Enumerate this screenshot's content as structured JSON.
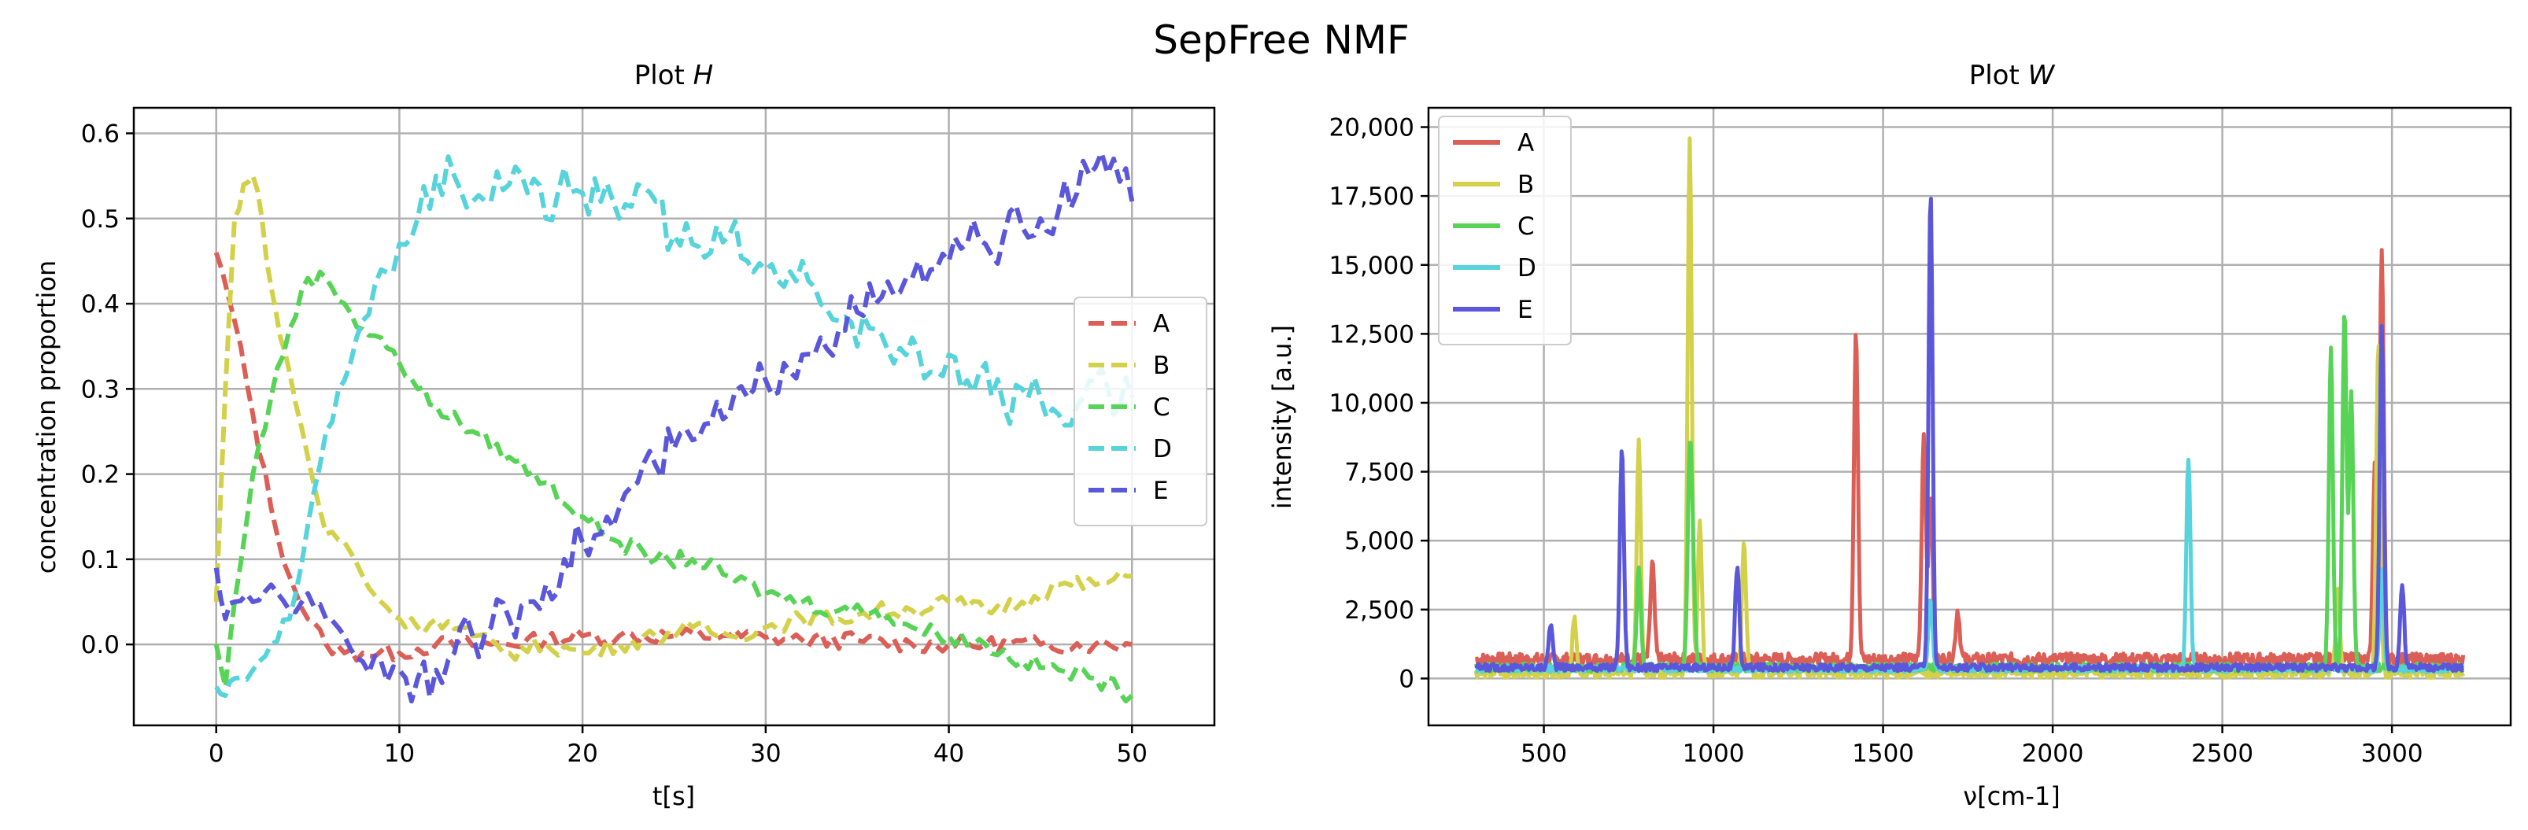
{
  "figure": {
    "suptitle": "SepFree NMF"
  },
  "chart_data": [
    {
      "type": "line",
      "title_main": "Plot ",
      "title_var": "H",
      "xlabel": "t[s]",
      "ylabel": "concentration proportion",
      "xlim": [
        -4.5,
        54.5
      ],
      "ylim": [
        -0.095,
        0.63
      ],
      "xticks": [
        0,
        10,
        20,
        30,
        40,
        50
      ],
      "yticks": [
        -0.1,
        0.0,
        0.1,
        0.2,
        0.3,
        0.4,
        0.5,
        0.6
      ],
      "xtick_labels": [
        "0",
        "10",
        "20",
        "30",
        "40",
        "50"
      ],
      "ytick_labels": [
        "0.0",
        "0.1",
        "0.2",
        "0.3",
        "0.4",
        "0.5",
        "0.6"
      ],
      "grid": true,
      "line_style": "dashed",
      "legend": "center-right",
      "series": [
        {
          "name": "A",
          "color": "#db5f57",
          "x": [
            0,
            1,
            2,
            3,
            4,
            5,
            6,
            7,
            8,
            10,
            12,
            15,
            18,
            20,
            22,
            25,
            28,
            30,
            32,
            35,
            38,
            40,
            42,
            45,
            48,
            50
          ],
          "y": [
            0.46,
            0.38,
            0.27,
            0.16,
            0.08,
            0.03,
            0.0,
            -0.01,
            -0.01,
            -0.01,
            0.0,
            0.0,
            0.005,
            0.01,
            0.01,
            0.01,
            0.01,
            0.008,
            0.005,
            0.005,
            0.0,
            0.0,
            0.0,
            0.0,
            0.0,
            0.0
          ]
        },
        {
          "name": "B",
          "color": "#d3d14a",
          "x": [
            0,
            0.5,
            1,
            1.5,
            2,
            2.5,
            3,
            3.5,
            4,
            5,
            6,
            7,
            8,
            9,
            10,
            11,
            12,
            14,
            16,
            18,
            20,
            22,
            24,
            26,
            28,
            30,
            32,
            34,
            36,
            38,
            40,
            42,
            44,
            46,
            48,
            50
          ],
          "y": [
            0.05,
            0.3,
            0.5,
            0.54,
            0.55,
            0.5,
            0.42,
            0.36,
            0.32,
            0.22,
            0.13,
            0.12,
            0.08,
            0.05,
            0.03,
            0.02,
            0.03,
            0.01,
            -0.01,
            0.0,
            -0.01,
            0.0,
            0.01,
            0.02,
            0.01,
            0.02,
            0.03,
            0.03,
            0.04,
            0.04,
            0.05,
            0.04,
            0.05,
            0.07,
            0.07,
            0.08
          ]
        },
        {
          "name": "C",
          "color": "#57d356",
          "x": [
            0,
            0.5,
            1,
            2,
            3,
            4,
            5,
            6,
            7,
            8,
            9,
            10,
            11,
            12,
            14,
            16,
            18,
            20,
            22,
            24,
            26,
            28,
            30,
            32,
            34,
            36,
            38,
            40,
            42,
            44,
            46,
            48,
            50
          ],
          "y": [
            0.0,
            -0.05,
            0.05,
            0.2,
            0.29,
            0.37,
            0.43,
            0.43,
            0.4,
            0.37,
            0.36,
            0.33,
            0.3,
            0.28,
            0.25,
            0.22,
            0.19,
            0.15,
            0.12,
            0.1,
            0.1,
            0.08,
            0.06,
            0.05,
            0.04,
            0.04,
            0.02,
            0.01,
            0.0,
            -0.02,
            -0.03,
            -0.04,
            -0.06
          ]
        },
        {
          "name": "D",
          "color": "#57d3db",
          "x": [
            0,
            0.5,
            1,
            2,
            3,
            4,
            5,
            6,
            7,
            8,
            9,
            10,
            11,
            12,
            13,
            14,
            15,
            16,
            17,
            18,
            19,
            20,
            21,
            22,
            23,
            24,
            25,
            26,
            27,
            28,
            29,
            30,
            31,
            32,
            33,
            34,
            35,
            36,
            37,
            38,
            39,
            40,
            41,
            42,
            43,
            44,
            45,
            46,
            47,
            48,
            49,
            50
          ],
          "y": [
            -0.05,
            -0.06,
            -0.04,
            -0.03,
            0.0,
            0.03,
            0.14,
            0.25,
            0.31,
            0.38,
            0.44,
            0.47,
            0.5,
            0.55,
            0.55,
            0.52,
            0.52,
            0.54,
            0.53,
            0.5,
            0.56,
            0.53,
            0.52,
            0.5,
            0.54,
            0.52,
            0.48,
            0.47,
            0.46,
            0.48,
            0.45,
            0.44,
            0.42,
            0.45,
            0.4,
            0.38,
            0.35,
            0.37,
            0.33,
            0.36,
            0.32,
            0.34,
            0.31,
            0.33,
            0.28,
            0.3,
            0.29,
            0.27,
            0.28,
            0.31,
            0.27,
            0.29
          ]
        },
        {
          "name": "E",
          "color": "#5a57db",
          "x": [
            0,
            0.5,
            1,
            2,
            3,
            4,
            5,
            6,
            7,
            8,
            9,
            10,
            11,
            12,
            13,
            14,
            15,
            16,
            17,
            18,
            19,
            20,
            21,
            22,
            23,
            24,
            25,
            26,
            27,
            28,
            29,
            30,
            31,
            32,
            33,
            34,
            35,
            36,
            37,
            38,
            39,
            40,
            41,
            42,
            43,
            44,
            45,
            46,
            47,
            48,
            49,
            50
          ],
          "y": [
            0.09,
            0.03,
            0.05,
            0.05,
            0.07,
            0.04,
            0.06,
            0.03,
            0.01,
            -0.02,
            -0.02,
            -0.03,
            -0.04,
            -0.03,
            -0.01,
            0.01,
            0.02,
            0.03,
            0.05,
            0.07,
            0.1,
            0.12,
            0.13,
            0.16,
            0.19,
            0.21,
            0.23,
            0.24,
            0.26,
            0.27,
            0.29,
            0.31,
            0.33,
            0.34,
            0.36,
            0.37,
            0.39,
            0.4,
            0.41,
            0.43,
            0.44,
            0.45,
            0.47,
            0.47,
            0.48,
            0.49,
            0.5,
            0.51,
            0.53,
            0.56,
            0.57,
            0.52
          ]
        }
      ]
    },
    {
      "type": "line",
      "title_main": "Plot ",
      "title_var": "W",
      "xlabel": "ν[cm-1]",
      "ylabel": "intensity [a.u.]",
      "xlim": [
        160,
        3350
      ],
      "ylim": [
        -1700,
        20700
      ],
      "xticks": [
        500,
        1000,
        1500,
        2000,
        2500,
        3000
      ],
      "yticks": [
        0,
        2500,
        5000,
        7500,
        10000,
        12500,
        15000,
        17500,
        20000
      ],
      "xtick_labels": [
        "500",
        "1000",
        "1500",
        "2000",
        "2500",
        "3000"
      ],
      "ytick_labels": [
        "0",
        "2,500",
        "5,000",
        "7,500",
        "10,000",
        "12,500",
        "15,000",
        "17,500",
        "20,000"
      ],
      "grid": true,
      "line_style": "solid",
      "legend": "top-left",
      "x_range": [
        300,
        3210
      ],
      "series": [
        {
          "name": "A",
          "color": "#db5f57",
          "baseline": 700,
          "noise": 220,
          "peaks": [
            [
              820,
              3500
            ],
            [
              1420,
              12000
            ],
            [
              1620,
              8200
            ],
            [
              1640,
              6000
            ],
            [
              1720,
              1800
            ],
            [
              2970,
              14800
            ],
            [
              2950,
              7000
            ]
          ]
        },
        {
          "name": "B",
          "color": "#d3d14a",
          "baseline": 200,
          "noise": 180,
          "peaks": [
            [
              590,
              2000
            ],
            [
              780,
              8500
            ],
            [
              930,
              19500
            ],
            [
              960,
              5500
            ],
            [
              1090,
              4900
            ],
            [
              2840,
              3000
            ],
            [
              2960,
              12000
            ]
          ]
        },
        {
          "name": "C",
          "color": "#57d356",
          "baseline": 400,
          "noise": 150,
          "peaks": [
            [
              780,
              3700
            ],
            [
              930,
              7500
            ],
            [
              940,
              3000
            ],
            [
              2820,
              11500
            ],
            [
              2860,
              13000
            ],
            [
              2880,
              10000
            ]
          ]
        },
        {
          "name": "D",
          "color": "#57d3db",
          "baseline": 350,
          "noise": 120,
          "peaks": [
            [
              2400,
              7700
            ],
            [
              2970,
              3500
            ],
            [
              1640,
              2500
            ]
          ]
        },
        {
          "name": "E",
          "color": "#5a57db",
          "baseline": 400,
          "noise": 130,
          "peaks": [
            [
              520,
              1600
            ],
            [
              730,
              8000
            ],
            [
              1070,
              3700
            ],
            [
              1640,
              17300
            ],
            [
              2970,
              12400
            ],
            [
              3030,
              3000
            ]
          ]
        }
      ]
    }
  ]
}
